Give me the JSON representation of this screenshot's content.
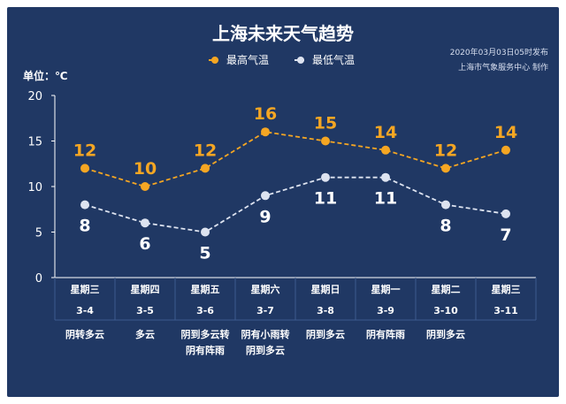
{
  "header": {
    "title": "上海未来天气趋势",
    "publish_time": "2020年03月03日05时发布",
    "publisher": "上海市气象服务中心  制作"
  },
  "colors": {
    "background": "#203864",
    "high_series": "#f5a623",
    "low_series": "#dde3f0",
    "axis": "#ffffff",
    "cell_border": "#3c5a8e"
  },
  "chart_data": {
    "type": "line",
    "title": "上海未来天气趋势",
    "ylabel": "单位：℃",
    "ylim": [
      0,
      20
    ],
    "yticks": [
      0,
      5,
      10,
      15,
      20
    ],
    "grid": false,
    "legend_position": "top-center",
    "categories": [
      "3-4",
      "3-5",
      "3-6",
      "3-7",
      "3-8",
      "3-9",
      "3-10",
      "3-11"
    ],
    "weekdays": [
      "星期三",
      "星期四",
      "星期五",
      "星期六",
      "星期日",
      "星期一",
      "星期二",
      "星期三"
    ],
    "weather": [
      [
        "阴转多云"
      ],
      [
        "多云"
      ],
      [
        "阴到多云转",
        "阴有阵雨"
      ],
      [
        "阴有小雨转",
        "阴到多云"
      ],
      [
        "阴到多云"
      ],
      [
        "阴有阵雨"
      ],
      [
        "阴到多云"
      ],
      []
    ],
    "series": [
      {
        "name": "最高气温",
        "values": [
          12,
          10,
          12,
          16,
          15,
          14,
          12,
          14
        ]
      },
      {
        "name": "最低气温",
        "values": [
          8,
          6,
          5,
          9,
          11,
          11,
          8,
          7
        ]
      }
    ]
  }
}
